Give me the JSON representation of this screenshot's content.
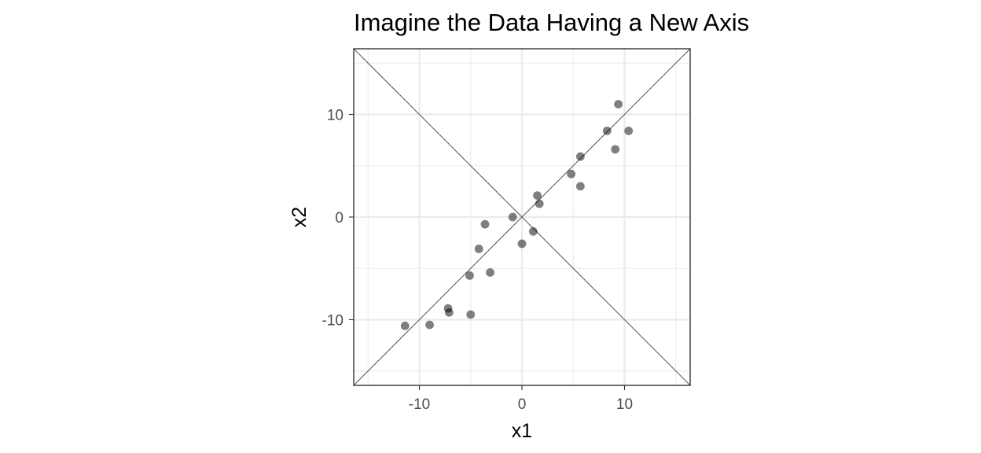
{
  "chart_data": {
    "type": "scatter",
    "title": "Imagine the Data Having a New Axis",
    "xlabel": "x1",
    "ylabel": "x2",
    "xlim": [
      -16.4,
      16.4
    ],
    "ylim": [
      -16.4,
      16.4
    ],
    "x_ticks": [
      -10,
      0,
      10
    ],
    "y_ticks": [
      -10,
      0,
      10
    ],
    "x_tick_labels": [
      "-10",
      "0",
      "10"
    ],
    "y_tick_labels": [
      "-10",
      "0",
      "10"
    ],
    "minor_breaks": [
      -15,
      -5,
      5,
      15
    ],
    "grid": true,
    "theme": "bw",
    "point_color": "#000000",
    "point_alpha": 0.5,
    "reference_lines": [
      {
        "slope": 1,
        "intercept": 0
      },
      {
        "slope": -1,
        "intercept": 0
      }
    ],
    "points": [
      {
        "x": -11.4,
        "y": -10.6
      },
      {
        "x": -9.0,
        "y": -10.5
      },
      {
        "x": -7.2,
        "y": -8.9
      },
      {
        "x": -7.1,
        "y": -9.3
      },
      {
        "x": -5.0,
        "y": -9.5
      },
      {
        "x": -5.1,
        "y": -5.7
      },
      {
        "x": -3.1,
        "y": -5.4
      },
      {
        "x": -4.2,
        "y": -3.1
      },
      {
        "x": -3.6,
        "y": -0.7
      },
      {
        "x": -0.9,
        "y": 0.0
      },
      {
        "x": 0.0,
        "y": -2.6
      },
      {
        "x": 1.1,
        "y": -1.4
      },
      {
        "x": 1.5,
        "y": 2.1
      },
      {
        "x": 1.7,
        "y": 1.3
      },
      {
        "x": 4.8,
        "y": 4.2
      },
      {
        "x": 5.7,
        "y": 5.9
      },
      {
        "x": 5.7,
        "y": 3.0
      },
      {
        "x": 8.3,
        "y": 8.4
      },
      {
        "x": 9.1,
        "y": 6.6
      },
      {
        "x": 9.4,
        "y": 11.0
      },
      {
        "x": 10.4,
        "y": 8.4
      }
    ]
  }
}
